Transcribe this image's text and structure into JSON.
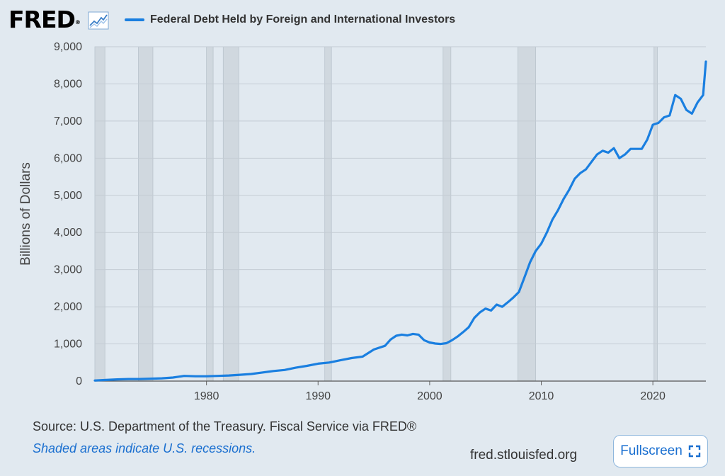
{
  "header": {
    "logo_text": "FRED",
    "logo_mark": "®",
    "logo_icon": "line-graph-icon",
    "legend_label": "Federal Debt Held by Foreign and International Investors"
  },
  "footer": {
    "source": "Source: U.S. Department of the Treasury. Fiscal Service via FRED®",
    "note": "Shaded areas indicate U.S. recessions.",
    "site": "fred.stlouisfed.org",
    "fullscreen_label": "Fullscreen",
    "fullscreen_icon": "expand-icon"
  },
  "colors": {
    "background": "#e1e9f0",
    "series": "#1a7fe0",
    "recession": "#d0d8df",
    "grid": "#c4ccd4",
    "note_text": "#1a6fd0"
  },
  "chart_data": {
    "type": "line",
    "title": "",
    "xlabel": "",
    "ylabel": "Billions of Dollars",
    "xlim": [
      1970,
      2024.75
    ],
    "ylim": [
      0,
      9000
    ],
    "yticks": [
      "0",
      "1,000",
      "2,000",
      "3,000",
      "4,000",
      "5,000",
      "6,000",
      "7,000",
      "8,000",
      "9,000"
    ],
    "xticks": [
      "1980",
      "1990",
      "2000",
      "2010",
      "2020"
    ],
    "grid": true,
    "legend_position": "top-left",
    "recessions": [
      [
        1969.9,
        1970.9
      ],
      [
        1973.9,
        1975.2
      ],
      [
        1980.0,
        1980.6
      ],
      [
        1981.5,
        1982.9
      ],
      [
        1990.6,
        1991.2
      ],
      [
        2001.2,
        2001.9
      ],
      [
        2007.9,
        2009.5
      ],
      [
        2020.1,
        2020.4
      ]
    ],
    "series": [
      {
        "name": "Federal Debt Held by Foreign and International Investors",
        "x": [
          1970,
          1971,
          1972,
          1973,
          1974,
          1975,
          1976,
          1977,
          1978,
          1979,
          1980,
          1981,
          1982,
          1983,
          1984,
          1985,
          1986,
          1987,
          1988,
          1989,
          1990,
          1991,
          1992,
          1993,
          1994,
          1995,
          1996,
          1996.5,
          1997,
          1997.5,
          1998,
          1998.5,
          1999,
          1999.5,
          2000,
          2000.5,
          2001,
          2001.5,
          2002,
          2002.5,
          2003,
          2003.5,
          2004,
          2004.5,
          2005,
          2005.5,
          2006,
          2006.5,
          2007,
          2007.5,
          2008,
          2008.5,
          2009,
          2009.5,
          2010,
          2010.5,
          2011,
          2011.5,
          2012,
          2012.5,
          2013,
          2013.5,
          2014,
          2014.5,
          2015,
          2015.5,
          2016,
          2016.5,
          2017,
          2017.5,
          2018,
          2018.5,
          2019,
          2019.5,
          2020,
          2020.5,
          2021,
          2021.5,
          2022,
          2022.5,
          2023,
          2023.5,
          2024,
          2024.5,
          2024.75
        ],
        "values": [
          15,
          30,
          45,
          55,
          55,
          65,
          75,
          95,
          140,
          130,
          130,
          140,
          150,
          170,
          190,
          230,
          270,
          300,
          360,
          410,
          470,
          500,
          560,
          620,
          660,
          850,
          950,
          1120,
          1220,
          1250,
          1230,
          1270,
          1250,
          1100,
          1040,
          1010,
          1000,
          1020,
          1100,
          1200,
          1320,
          1450,
          1700,
          1850,
          1950,
          1900,
          2060,
          2000,
          2120,
          2250,
          2400,
          2800,
          3200,
          3500,
          3700,
          4000,
          4350,
          4600,
          4900,
          5150,
          5450,
          5600,
          5700,
          5900,
          6100,
          6200,
          6150,
          6270,
          6000,
          6100,
          6250,
          6250,
          6250,
          6500,
          6900,
          6950,
          7100,
          7150,
          7700,
          7600,
          7300,
          7200,
          7500,
          7700,
          8600
        ]
      }
    ]
  }
}
